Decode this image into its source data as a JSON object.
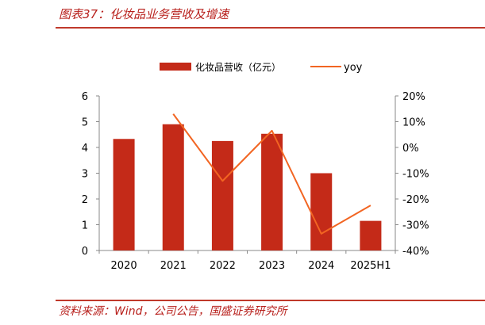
{
  "figure": {
    "title": "图表37：化妆品业务营收及增速",
    "source": "资料来源：Wind，公司公告，国盛证券研究所"
  },
  "colors": {
    "bar": "#c42a18",
    "line": "#f26522",
    "rule": "#c0392b",
    "caption": "#b8201c"
  },
  "chart_data": {
    "type": "bar",
    "categories": [
      "2020",
      "2021",
      "2022",
      "2023",
      "2024",
      "2025H1"
    ],
    "series": [
      {
        "name": "化妆品营收（亿元）",
        "type": "bar",
        "axis": "left",
        "values": [
          4.33,
          4.9,
          4.25,
          4.53,
          3.0,
          1.15
        ]
      },
      {
        "name": "yoy",
        "type": "line",
        "axis": "right",
        "values": [
          null,
          13.0,
          -13.0,
          6.5,
          -33.5,
          -22.5
        ]
      }
    ],
    "y_left": {
      "ylim": [
        0,
        6
      ],
      "ticks": [
        "0",
        "1",
        "2",
        "3",
        "4",
        "5",
        "6"
      ]
    },
    "y_right": {
      "ylim": [
        -40,
        20
      ],
      "ticks": [
        "-40%",
        "-30%",
        "-20%",
        "-10%",
        "0%",
        "10%",
        "20%"
      ]
    },
    "legend_position": "top",
    "grid": false
  }
}
